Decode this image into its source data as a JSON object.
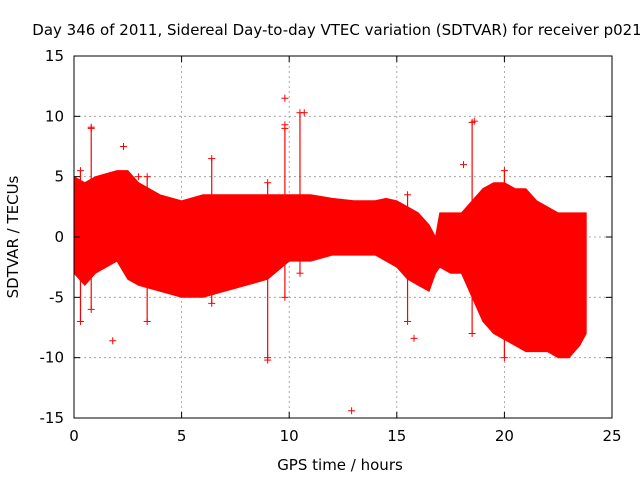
{
  "chart_data": {
    "type": "scatter",
    "title": "Day 346 of 2011, Sidereal Day-to-day VTEC variation (SDTVAR) for receiver p021",
    "xlabel": "GPS time / hours",
    "ylabel": "SDTVAR / TECUs",
    "xlim": [
      0,
      25
    ],
    "ylim": [
      -15,
      15
    ],
    "x_ticks": [
      0,
      5,
      10,
      15,
      20,
      25
    ],
    "y_ticks": [
      -15,
      -10,
      -5,
      0,
      5,
      10,
      15
    ],
    "grid": true,
    "series_color": "#ff0000",
    "marker": "+",
    "band": {
      "x": [
        0.0,
        0.5,
        1.0,
        2.0,
        2.5,
        3.0,
        4.0,
        5.0,
        6.0,
        7.0,
        8.0,
        9.0,
        10.0,
        11.0,
        12.0,
        13.0,
        14.0,
        14.5,
        15.0,
        15.5,
        16.0,
        16.5,
        16.8,
        17.0,
        17.5,
        18.0,
        18.5,
        19.0,
        19.5,
        20.0,
        20.5,
        21.0,
        21.5,
        22.0,
        22.5,
        23.0,
        23.5,
        23.8
      ],
      "upper": [
        5.0,
        4.5,
        5.0,
        5.5,
        5.5,
        4.5,
        3.5,
        3.0,
        3.5,
        3.5,
        3.5,
        3.5,
        3.5,
        3.5,
        3.2,
        3.0,
        3.0,
        3.2,
        3.0,
        2.5,
        2.0,
        1.0,
        0.0,
        2.0,
        2.0,
        2.0,
        3.0,
        4.0,
        4.5,
        4.5,
        4.0,
        4.0,
        3.0,
        2.5,
        2.0,
        2.0,
        2.0,
        2.0
      ],
      "lower": [
        -3.0,
        -4.0,
        -3.0,
        -2.0,
        -3.5,
        -4.0,
        -4.5,
        -5.0,
        -5.0,
        -4.5,
        -4.0,
        -3.5,
        -2.0,
        -2.0,
        -1.5,
        -1.5,
        -1.5,
        -2.0,
        -2.5,
        -3.5,
        -4.0,
        -4.5,
        -3.0,
        -2.5,
        -3.0,
        -3.0,
        -5.0,
        -7.0,
        -8.0,
        -8.5,
        -9.0,
        -9.5,
        -9.5,
        -9.5,
        -10.0,
        -10.0,
        -9.0,
        -8.0
      ]
    },
    "spikes": [
      {
        "x": 0.8,
        "lo": -6.0,
        "hi": 9.0
      },
      {
        "x": 0.3,
        "lo": -7.0,
        "hi": 5.5
      },
      {
        "x": 3.4,
        "lo": -7.0,
        "hi": 5.0
      },
      {
        "x": 6.4,
        "lo": -5.5,
        "hi": 6.5
      },
      {
        "x": 9.0,
        "lo": -10.0,
        "hi": 4.5
      },
      {
        "x": 9.8,
        "lo": -5.0,
        "hi": 9.0
      },
      {
        "x": 10.5,
        "lo": -3.0,
        "hi": 10.3
      },
      {
        "x": 15.5,
        "lo": -7.0,
        "hi": 3.5
      },
      {
        "x": 18.5,
        "lo": -8.0,
        "hi": 9.5
      },
      {
        "x": 20.0,
        "lo": -10.0,
        "hi": 5.5
      }
    ],
    "outliers": [
      {
        "x": 9.8,
        "y": 11.5
      },
      {
        "x": 9.8,
        "y": 9.3
      },
      {
        "x": 10.7,
        "y": 10.3
      },
      {
        "x": 18.6,
        "y": 9.6
      },
      {
        "x": 0.8,
        "y": 9.1
      },
      {
        "x": 18.1,
        "y": 6.0
      },
      {
        "x": 2.3,
        "y": 7.5
      },
      {
        "x": 1.8,
        "y": -8.6
      },
      {
        "x": 12.9,
        "y": -14.4
      },
      {
        "x": 9.0,
        "y": -10.2
      },
      {
        "x": 15.8,
        "y": -8.4
      },
      {
        "x": 21.3,
        "y": -9.2
      },
      {
        "x": 3.0,
        "y": 5.0
      }
    ]
  }
}
